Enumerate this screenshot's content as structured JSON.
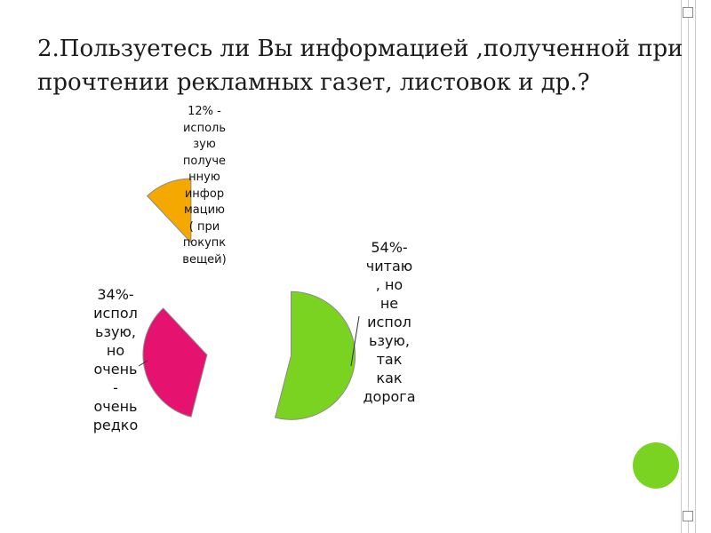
{
  "slide": {
    "title": "2.Пользуетесь ли Вы информацией ,полученной при прочтении рекламных газет, листовок и др.?"
  },
  "colors": {
    "green": "#7bd321",
    "orange": "#f5a800",
    "pink": "#e5136f",
    "frame": "#cfcfcf",
    "accent_circle": "#7bd321"
  },
  "chart_data": {
    "type": "pie",
    "exploded": true,
    "series": [
      {
        "value": 54,
        "color": "#7bd321",
        "label": "54%-\nчитаю\n, но\nне\nиспол\nьзую,\nтак\nкак\nдорога"
      },
      {
        "value": 34,
        "color": "#e5136f",
        "label": "34%-\nиспол\nьзую,\nно\nочень\n-\nочень\nредко"
      },
      {
        "value": 12,
        "color": "#f5a800",
        "label": "12% -\nисполь\nзую\nполуче\nнную\nинфор\nмацию\n( при\nпокупк\nвещей)"
      }
    ]
  }
}
